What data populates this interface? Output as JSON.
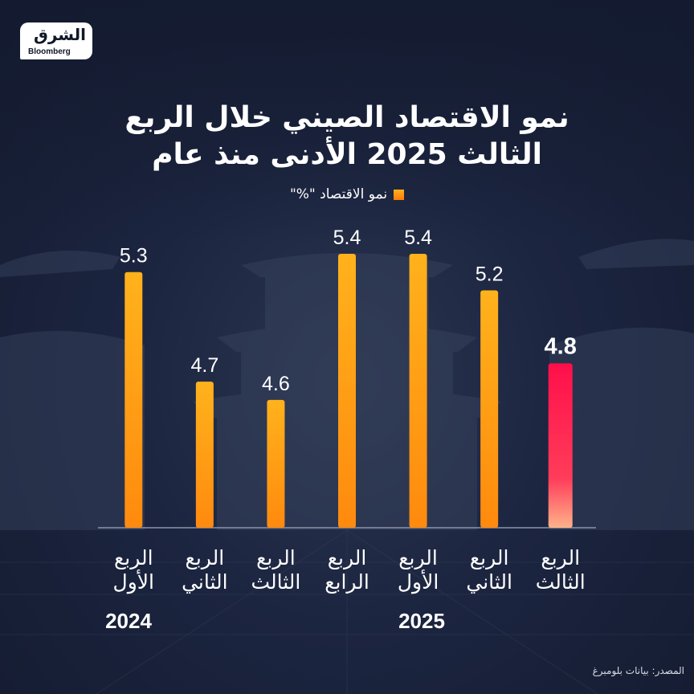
{
  "logo": {
    "brand_ar": "الشرق",
    "partner": "Bloomberg"
  },
  "title_lines": [
    "نمو الاقتصاد الصيني خلال الربع",
    "الثالث 2025 الأدنى منذ عام"
  ],
  "legend_label": "نمو الاقتصاد \"%\"",
  "years": [
    "2024",
    "2025"
  ],
  "source": "المصدر: بيانات بلومبرغ",
  "colors": {
    "bar": "#ffa515",
    "highlight": "#ff1a52",
    "baseline": "#8b93a8"
  },
  "chart_data": {
    "type": "bar",
    "title": "نمو الاقتصاد الصيني خلال الربع الثالث 2025 الأدنى منذ عام",
    "xlabel": "",
    "ylabel": "نمو الاقتصاد \"%\"",
    "categories": [
      [
        "الربع",
        "الأول"
      ],
      [
        "الربع",
        "الثاني"
      ],
      [
        "الربع",
        "الثالث"
      ],
      [
        "الربع",
        "الرابع"
      ],
      [
        "الربع",
        "الأول"
      ],
      [
        "الربع",
        "الثاني"
      ],
      [
        "الربع",
        "الثالث"
      ]
    ],
    "groups": [
      {
        "name": "2024",
        "indices": [
          0,
          1,
          2,
          3
        ]
      },
      {
        "name": "2025",
        "indices": [
          4,
          5,
          6
        ]
      }
    ],
    "series": [
      {
        "name": "نمو الاقتصاد \"%\"",
        "values": [
          5.3,
          4.7,
          4.6,
          5.4,
          5.4,
          5.2,
          4.8
        ]
      }
    ],
    "value_labels": [
      "5.3",
      "4.7",
      "4.6",
      "5.4",
      "5.4",
      "5.2",
      "4.8"
    ],
    "highlight_index": 6,
    "ylim": [
      3.9,
      5.4
    ],
    "grid": false,
    "legend": "top-center"
  }
}
